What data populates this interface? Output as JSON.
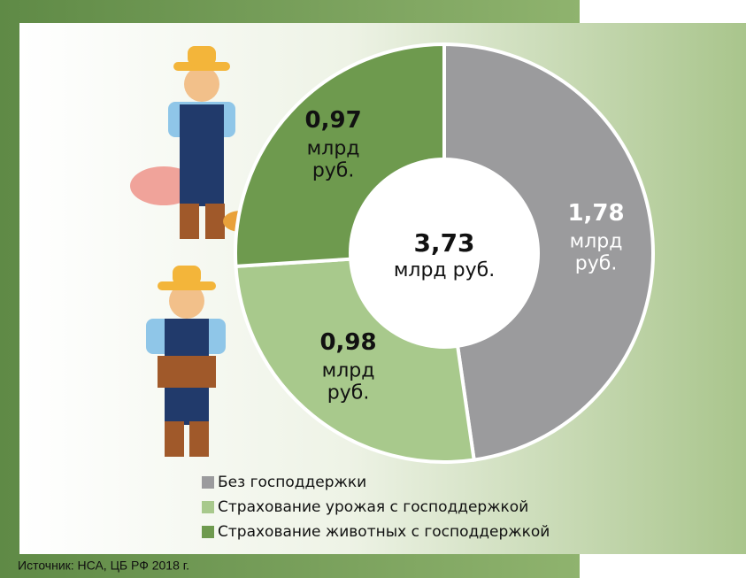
{
  "chart_data": {
    "type": "donut",
    "categories": [
      "Без господдержки",
      "Страхование урожая с господдержкой",
      "Страхование животных с господдержкой"
    ],
    "values": [
      1.78,
      0.98,
      0.97
    ],
    "value_labels": [
      "1,78",
      "0,98",
      "0,97"
    ],
    "value_unit": [
      "млрд",
      "руб."
    ],
    "colors": [
      "#9b9b9d",
      "#a8c98c",
      "#6e9a4e"
    ],
    "center_label": "3,73",
    "center_unit": "млрд руб.",
    "source": "Источник: НСА, ЦБ РФ 2018 г."
  }
}
